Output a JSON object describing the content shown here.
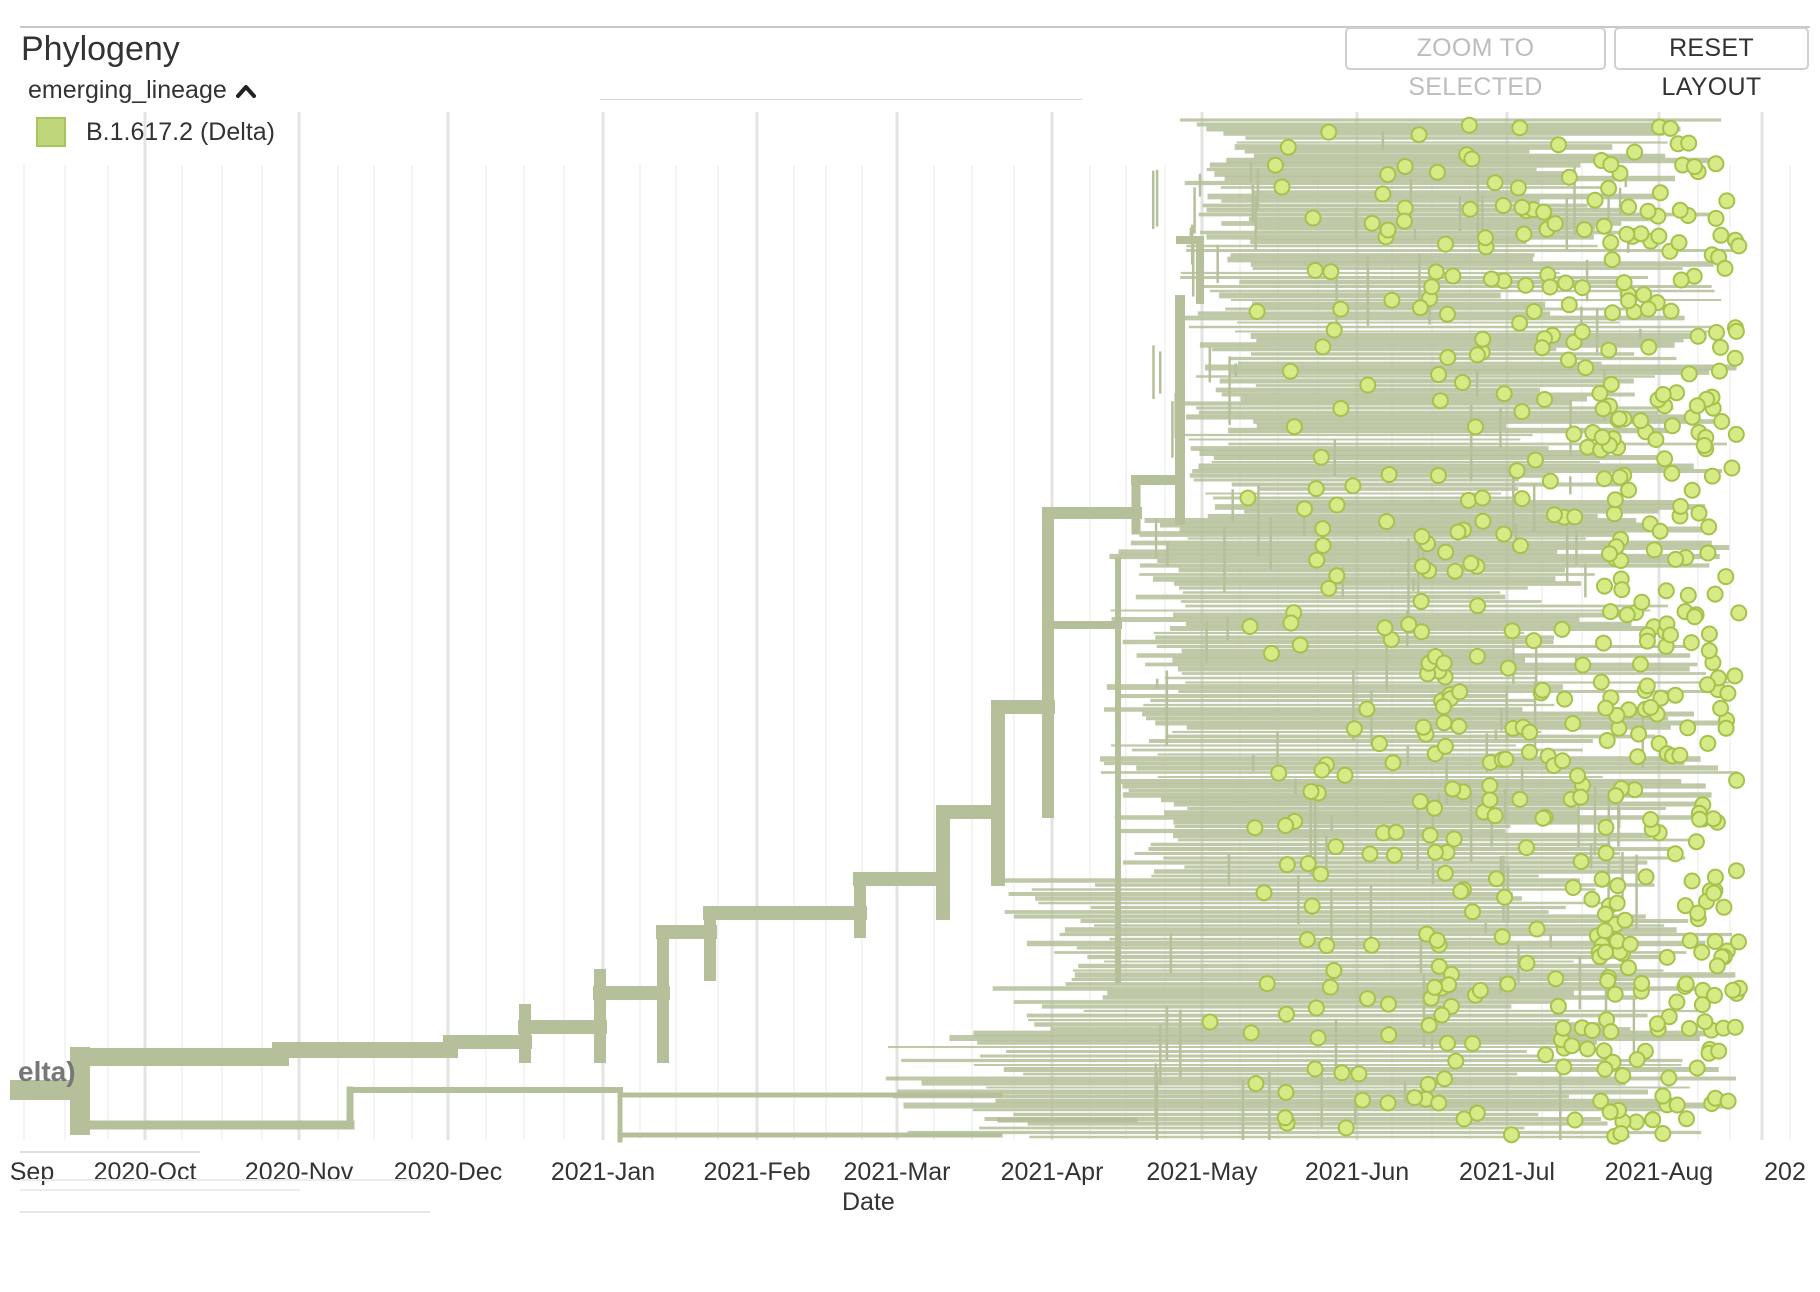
{
  "panel": {
    "title": "Phylogeny",
    "zoom_button": "ZOOM TO SELECTED",
    "reset_button": "RESET LAYOUT"
  },
  "legend": {
    "title": "emerging_lineage",
    "items": [
      {
        "label": "B.1.617.2 (Delta)",
        "color": "#bfd77a"
      }
    ]
  },
  "root_label": "elta)",
  "colors": {
    "branch": "#b5c09a",
    "tip_fill": "#d6ea85",
    "tip_stroke": "#a6c24e",
    "grid": "#e3e3e3"
  },
  "axis": {
    "title": "Date",
    "ticks": [
      "Sep",
      "2020-Oct",
      "2020-Nov",
      "2020-Dec",
      "2021-Jan",
      "2021-Feb",
      "2021-Mar",
      "2021-Apr",
      "2021-May",
      "2021-Jun",
      "2021-Jul",
      "2021-Aug",
      "202"
    ]
  }
}
